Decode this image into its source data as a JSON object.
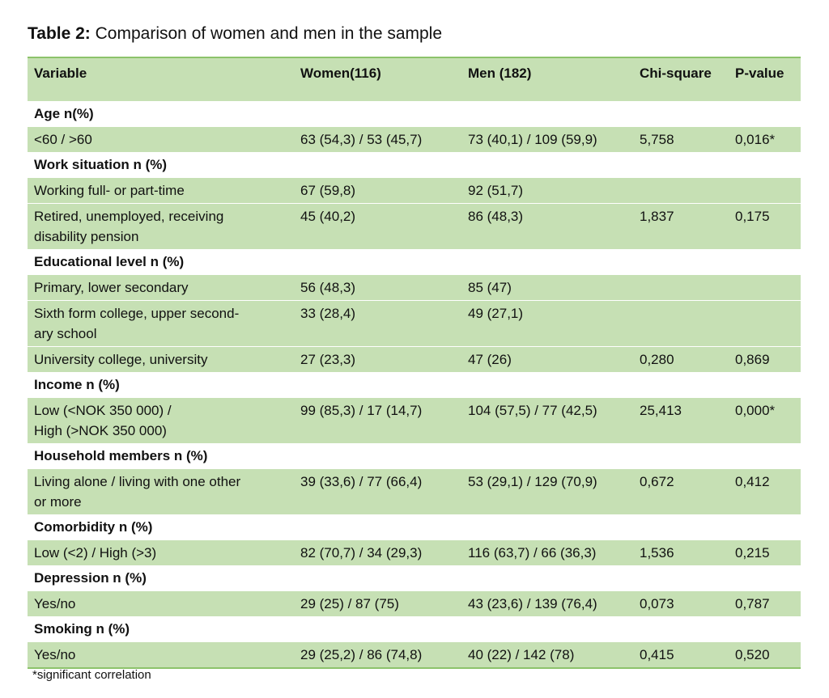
{
  "title": {
    "label": "Table 2:",
    "text": "Comparison of women and men in the sample"
  },
  "table": {
    "header": [
      "Variable",
      "Women(116)",
      "Men (182)",
      "Chi-square",
      "P-value"
    ],
    "rows": [
      [
        "Age n(%)"
      ],
      [
        "<60 / >60",
        "63 (54,3) / 53 (45,7)",
        "73 (40,1) / 109 (59,9)",
        "5,758",
        "0,016*"
      ],
      [
        "Work situation n (%)"
      ],
      [
        "Working full- or part-time",
        "67 (59,8)",
        "92 (51,7)"
      ],
      [
        "Retired, unemployed, receiving\ndisability pension",
        "45 (40,2)",
        "86 (48,3)",
        "1,837",
        "0,175"
      ],
      [
        "Educational level n (%)"
      ],
      [
        "Primary, lower secondary",
        "56 (48,3)",
        "85 (47)"
      ],
      [
        "Sixth form college, upper second-\nary school",
        "33 (28,4)",
        "49 (27,1)"
      ],
      [
        "University college, university",
        "27 (23,3)",
        "47 (26)",
        "0,280",
        "0,869"
      ],
      [
        "Income n (%)"
      ],
      [
        "Low (<NOK 350 000) /\nHigh (>NOK 350 000)",
        "99 (85,3) / 17 (14,7)",
        "104 (57,5) / 77 (42,5)",
        "25,413",
        "0,000*"
      ],
      [
        "Household members n (%)"
      ],
      [
        "Living alone / living with one other\nor more",
        "39 (33,6) / 77 (66,4)",
        "53 (29,1) / 129 (70,9)",
        "0,672",
        "0,412"
      ],
      [
        "Comorbidity n (%)"
      ],
      [
        "Low (<2) / High (>3)",
        "82 (70,7) / 34 (29,3)",
        "116 (63,7) / 66 (36,3)",
        "1,536",
        "0,215"
      ],
      [
        "Depression n (%)"
      ],
      [
        "Yes/no",
        "29 (25) / 87 (75)",
        "43 (23,6) / 139 (76,4)",
        "0,073",
        "0,787"
      ],
      [
        "Smoking n (%)"
      ],
      [
        "Yes/no",
        "29 (25,2) / 86 (74,8)",
        "40 (22) / 142 (78)",
        "0,415",
        "0,520"
      ]
    ]
  },
  "footnote": "*significant correlation"
}
